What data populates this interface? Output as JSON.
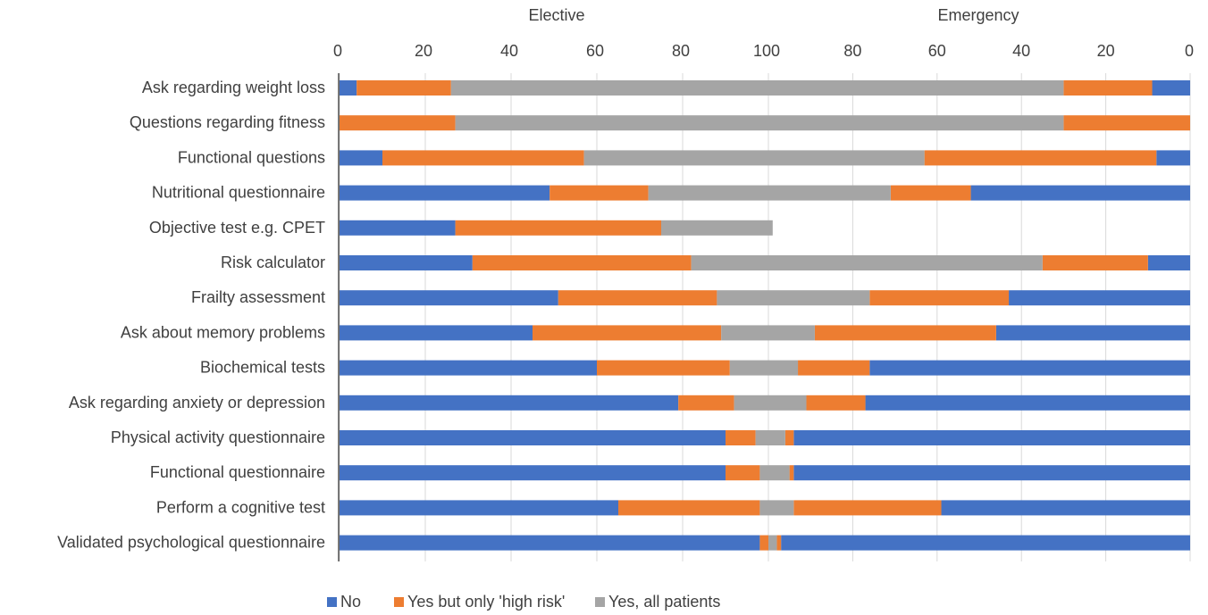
{
  "chart_data": {
    "type": "bar",
    "orientation": "horizontal",
    "stacked": true,
    "layout": "back-to-back",
    "left_title": "Elective",
    "right_title": "Emergency",
    "left_ticks": [
      "0",
      "20",
      "40",
      "60",
      "80",
      "100"
    ],
    "right_ticks": [
      "80",
      "60",
      "40",
      "20",
      "0"
    ],
    "xlim": [
      0,
      100
    ],
    "grid": true,
    "legend_position": "bottom",
    "categories": [
      "Ask regarding weight loss",
      "Questions regarding fitness",
      "Functional questions",
      "Nutritional questionnaire",
      "Objective test e.g. CPET",
      "Risk calculator",
      "Frailty assessment",
      "Ask about memory problems",
      "Biochemical tests",
      "Ask regarding anxiety or depression",
      "Physical activity questionnaire",
      "Functional questionnaire",
      "Perform a cognitive test",
      "Validated psychological questionnaire"
    ],
    "series": [
      {
        "name": "No",
        "color": "#4472C4",
        "elective": [
          4,
          0,
          10,
          49,
          27,
          31,
          51,
          45,
          60,
          79,
          90,
          90,
          65,
          98
        ],
        "emergency": [
          9,
          0,
          8,
          52,
          null,
          10,
          43,
          46,
          76,
          77,
          94,
          94,
          59,
          97
        ]
      },
      {
        "name": "Yes but only 'high risk'",
        "color": "#ED7D31",
        "elective": [
          22,
          27,
          47,
          23,
          48,
          51,
          37,
          44,
          31,
          13,
          7,
          8,
          33,
          2
        ],
        "emergency": [
          21,
          30,
          55,
          19,
          null,
          25,
          33,
          43,
          17,
          14,
          2,
          1,
          35,
          1
        ]
      },
      {
        "name": "Yes, all patients",
        "color": "#A5A5A5",
        "elective": [
          74,
          73,
          43,
          28,
          26,
          18,
          12,
          11,
          9,
          8,
          3,
          2,
          2,
          0
        ],
        "emergency": [
          70,
          70,
          37,
          29,
          null,
          65,
          24,
          11,
          7,
          9,
          4,
          5,
          6,
          2
        ]
      }
    ]
  }
}
